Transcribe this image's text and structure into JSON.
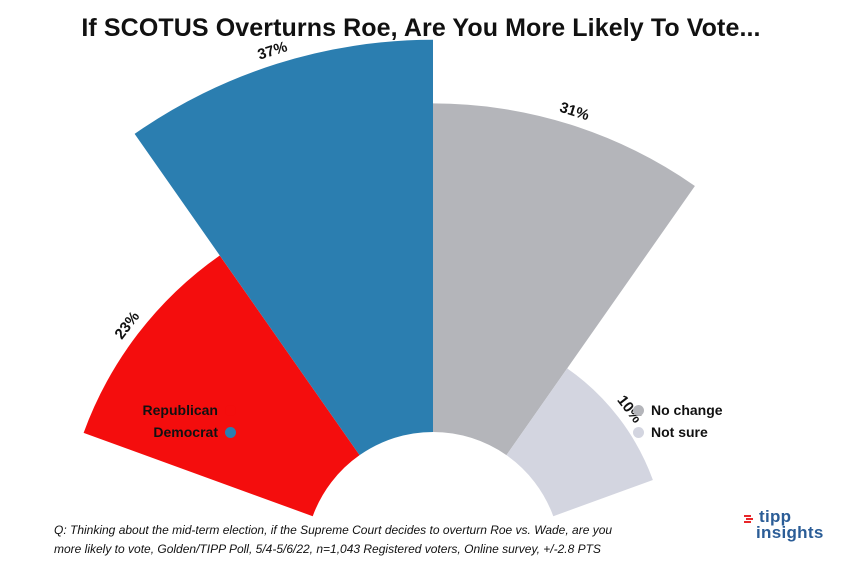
{
  "chart_data": {
    "type": "pie",
    "title": "If SCOTUS Overturns Roe, Are You More Likely To Vote...",
    "categories": [
      "Republican",
      "Democrat",
      "No change",
      "Not sure"
    ],
    "values": [
      23,
      37,
      31,
      10
    ],
    "value_labels": [
      "23%",
      "37%",
      "31%",
      "10%"
    ],
    "colors": [
      "#f40d0d",
      "#2b7eb0",
      "#b4b5ba",
      "#d3d5e0"
    ],
    "legend": {
      "left": [
        {
          "label": "Republican",
          "color": "#f40d0d"
        },
        {
          "label": "Democrat",
          "color": "#2b7eb0"
        }
      ],
      "right": [
        {
          "label": "No change",
          "color": "#b4b5ba"
        },
        {
          "label": "Not sure",
          "color": "#d3d5e0"
        }
      ]
    }
  },
  "footnote": {
    "line1": "Q:  Thinking about the mid-term election, if the Supreme Court decides to overturn Roe vs. Wade, are you",
    "line2": "more likely to vote, Golden/TIPP Poll, 5/4-5/6/22, n=1,043 Registered voters, Online survey, +/-2.8 PTS"
  },
  "brand": {
    "name": "tipp",
    "sub": "insights",
    "color": "#2b5d97",
    "accent": "#e8262a"
  }
}
